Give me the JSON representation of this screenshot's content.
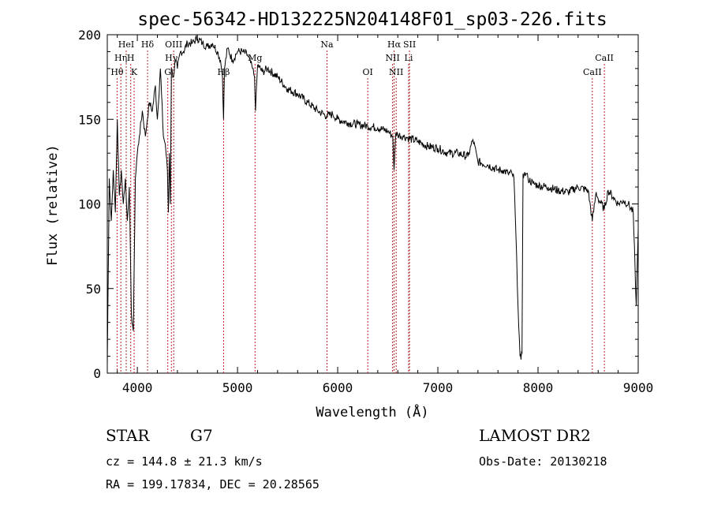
{
  "chart_data": {
    "type": "line",
    "title": "spec-56342-HD132225N204148F01_sp03-226.fits",
    "xlabel": "Wavelength (Å)",
    "ylabel": "Flux (relative)",
    "xlim": [
      3700,
      9000
    ],
    "ylim": [
      0,
      200
    ],
    "xticks": [
      4000,
      5000,
      6000,
      7000,
      8000,
      9000
    ],
    "yticks": [
      0,
      50,
      100,
      150,
      200
    ],
    "line_color": "#000000",
    "marker_color": "#b22222",
    "series": [
      {
        "x": [
          3700,
          3720,
          3740,
          3760,
          3780,
          3800,
          3820,
          3840,
          3860,
          3880,
          3900,
          3920,
          3940,
          3960,
          3980,
          4000,
          4020,
          4050,
          4080,
          4100,
          4120,
          4150,
          4180,
          4200,
          4230,
          4260,
          4280,
          4300,
          4310,
          4320,
          4330,
          4340,
          4360,
          4380,
          4400,
          4430,
          4460,
          4500,
          4550,
          4600,
          4650,
          4700,
          4750,
          4800,
          4830,
          4850,
          4861,
          4870,
          4900,
          4950,
          5000,
          5050,
          5100,
          5150,
          5170,
          5180,
          5200,
          5250,
          5300,
          5400,
          5500,
          5600,
          5700,
          5800,
          5890,
          5950,
          6000,
          6100,
          6200,
          6300,
          6400,
          6500,
          6550,
          6563,
          6580,
          6600,
          6650,
          6700,
          6800,
          6900,
          7000,
          7100,
          7200,
          7300,
          7350,
          7400,
          7500,
          7600,
          7650,
          7700,
          7740,
          7760,
          7780,
          7800,
          7820,
          7830,
          7840,
          7850,
          7860,
          7880,
          7900,
          7950,
          8000,
          8100,
          8200,
          8300,
          8400,
          8500,
          8542,
          8580,
          8600,
          8662,
          8700,
          8750,
          8800,
          8850,
          8900,
          8950,
          8980,
          9000
        ],
        "y": [
          5,
          115,
          90,
          120,
          95,
          150,
          105,
          120,
          100,
          115,
          90,
          110,
          35,
          25,
          115,
          130,
          140,
          155,
          140,
          150,
          160,
          155,
          170,
          150,
          180,
          140,
          135,
          120,
          95,
          130,
          100,
          180,
          175,
          185,
          180,
          190,
          190,
          195,
          195,
          198,
          195,
          193,
          195,
          190,
          185,
          175,
          150,
          180,
          192,
          185,
          190,
          190,
          188,
          180,
          175,
          155,
          182,
          178,
          180,
          175,
          168,
          165,
          160,
          155,
          152,
          153,
          150,
          148,
          147,
          146,
          145,
          143,
          140,
          120,
          142,
          141,
          140,
          139,
          137,
          134,
          133,
          130,
          130,
          128,
          138,
          125,
          123,
          120,
          120,
          118,
          118,
          115,
          80,
          40,
          10,
          8,
          12,
          118,
          117,
          118,
          115,
          112,
          111,
          110,
          108,
          107,
          110,
          108,
          90,
          107,
          103,
          97,
          108,
          104,
          100,
          102,
          100,
          95,
          40,
          85
        ]
      }
    ],
    "lines": [
      {
        "label": "Hθ",
        "x": 3798,
        "row": 3
      },
      {
        "label": "Hη",
        "x": 3835,
        "row": 2
      },
      {
        "label": "HeI",
        "x": 3889,
        "row": 1
      },
      {
        "label": "H",
        "x": 3934,
        "row": 2
      },
      {
        "label": "K",
        "x": 3968,
        "row": 3
      },
      {
        "label": "Hδ",
        "x": 4102,
        "row": 1
      },
      {
        "label": "OIII",
        "x": 4363,
        "row": 1
      },
      {
        "label": "Hγ",
        "x": 4340,
        "row": 2
      },
      {
        "label": "G",
        "x": 4304,
        "row": 3
      },
      {
        "label": "Hβ",
        "x": 4861,
        "row": 3
      },
      {
        "label": "Mg",
        "x": 5175,
        "row": 2
      },
      {
        "label": "Na",
        "x": 5893,
        "row": 1
      },
      {
        "label": "OI",
        "x": 6300,
        "row": 3
      },
      {
        "label": "Hα",
        "x": 6563,
        "row": 1
      },
      {
        "label": "NII",
        "x": 6548,
        "row": 2
      },
      {
        "label": "NII",
        "x": 6584,
        "row": 3
      },
      {
        "label": "SII",
        "x": 6717,
        "row": 1
      },
      {
        "label": "Li",
        "x": 6708,
        "row": 2
      },
      {
        "label": "CaII",
        "x": 8542,
        "row": 3
      },
      {
        "label": "CaII",
        "x": 8662,
        "row": 2
      }
    ]
  },
  "info": {
    "object_class": "STAR",
    "subclass": "G7",
    "survey": "LAMOST DR2",
    "cz": "cz = 144.8 ± 21.3 km/s",
    "obs_date": "Obs-Date: 20130218",
    "coords": "RA = 199.17834, DEC =  20.28565"
  }
}
